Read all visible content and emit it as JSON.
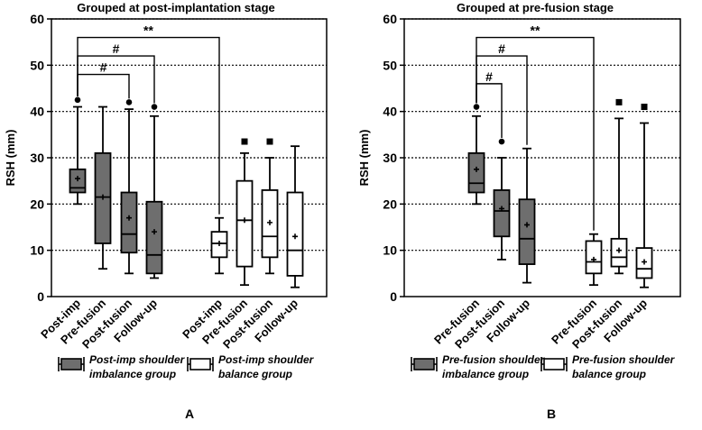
{
  "colors": {
    "imbalance": "#6e6e6e",
    "balance": "#ffffff",
    "stroke": "#000000"
  },
  "chart_data": [
    {
      "type": "boxplot",
      "panel_label": "A",
      "title": "Grouped at post-implantation stage",
      "ylabel": "RSH (mm)",
      "ylim": [
        0,
        60
      ],
      "yticks": [
        0,
        10,
        20,
        30,
        40,
        50,
        60
      ],
      "grid": "dotted horizontal",
      "categories": [
        "Post-imp",
        "Pre-fusion",
        "Post-fusion",
        "Follow-up",
        "Post-imp",
        "Pre-fusion",
        "Post-fusion",
        "Follow-up"
      ],
      "boxes": [
        {
          "group": "imbalance",
          "min": 20,
          "q1": 22.5,
          "median": 23.5,
          "q3": 27.5,
          "max": 41,
          "mean": 25.5,
          "outliers": [
            42.5
          ]
        },
        {
          "group": "imbalance",
          "min": 6,
          "q1": 11.5,
          "median": 21.5,
          "q3": 31,
          "max": 41,
          "mean": 21.5,
          "outliers": []
        },
        {
          "group": "imbalance",
          "min": 5,
          "q1": 9.5,
          "median": 13.5,
          "q3": 22.5,
          "max": 40.5,
          "mean": 17,
          "outliers": [
            42
          ]
        },
        {
          "group": "imbalance",
          "min": 4,
          "q1": 5,
          "median": 9,
          "q3": 20.5,
          "max": 39,
          "mean": 14,
          "outliers": [
            41
          ]
        },
        {
          "group": "balance",
          "min": 5,
          "q1": 8.5,
          "median": 11.5,
          "q3": 14,
          "max": 17,
          "mean": 11.5,
          "outliers": []
        },
        {
          "group": "balance",
          "min": 2.5,
          "q1": 6.5,
          "median": 16.5,
          "q3": 25,
          "max": 31,
          "mean": 16.5,
          "outliers": [
            33.5
          ]
        },
        {
          "group": "balance",
          "min": 5,
          "q1": 8.5,
          "median": 13,
          "q3": 23,
          "max": 30,
          "mean": 16,
          "outliers": [
            33.5
          ]
        },
        {
          "group": "balance",
          "min": 2,
          "q1": 4.5,
          "median": 10,
          "q3": 22.5,
          "max": 32.5,
          "mean": 13,
          "outliers": []
        }
      ],
      "significance": [
        {
          "label": "#",
          "from": 0,
          "to": 2,
          "level": 48
        },
        {
          "label": "#",
          "from": 0,
          "to": 3,
          "level": 52
        },
        {
          "label": "**",
          "from": 0,
          "to": 4,
          "level": 56
        }
      ],
      "legend": [
        {
          "group": "imbalance",
          "text": "Post-imp shoulder imbalance group"
        },
        {
          "group": "balance",
          "text": "Post-imp shoulder balance group"
        }
      ]
    },
    {
      "type": "boxplot",
      "panel_label": "B",
      "title": "Grouped at pre-fusion stage",
      "ylabel": "RSH (mm)",
      "ylim": [
        0,
        60
      ],
      "yticks": [
        0,
        10,
        20,
        30,
        40,
        50,
        60
      ],
      "grid": "dotted horizontal",
      "categories": [
        "Pre-fusion",
        "Post-fusion",
        "Follow-up",
        "Pre-fusion",
        "Post-fusion",
        "Follow-up"
      ],
      "boxes": [
        {
          "group": "imbalance",
          "min": 20,
          "q1": 22.5,
          "median": 24.5,
          "q3": 31,
          "max": 39,
          "mean": 27.5,
          "outliers": [
            41
          ]
        },
        {
          "group": "imbalance",
          "min": 8,
          "q1": 13,
          "median": 18.5,
          "q3": 23,
          "max": 30,
          "mean": 19,
          "outliers": [
            33.5
          ]
        },
        {
          "group": "imbalance",
          "min": 3,
          "q1": 7,
          "median": 12.5,
          "q3": 21,
          "max": 32,
          "mean": 15.5,
          "outliers": []
        },
        {
          "group": "balance",
          "min": 2.5,
          "q1": 5,
          "median": 7.5,
          "q3": 12,
          "max": 13.5,
          "mean": 8,
          "outliers": []
        },
        {
          "group": "balance",
          "min": 5,
          "q1": 6.5,
          "median": 8.5,
          "q3": 12.5,
          "max": 38.5,
          "mean": 10,
          "outliers": [
            42
          ]
        },
        {
          "group": "balance",
          "min": 2,
          "q1": 4,
          "median": 6,
          "q3": 10.5,
          "max": 37.5,
          "mean": 7.5,
          "outliers": [
            41
          ]
        }
      ],
      "significance": [
        {
          "label": "#",
          "from": 0,
          "to": 1,
          "level": 46
        },
        {
          "label": "#",
          "from": 0,
          "to": 2,
          "level": 52
        },
        {
          "label": "**",
          "from": 0,
          "to": 3,
          "level": 56
        }
      ],
      "legend": [
        {
          "group": "imbalance",
          "text": "Pre-fusion shoulder imbalance group"
        },
        {
          "group": "balance",
          "text": "Pre-fusion shoulder balance group"
        }
      ]
    }
  ]
}
